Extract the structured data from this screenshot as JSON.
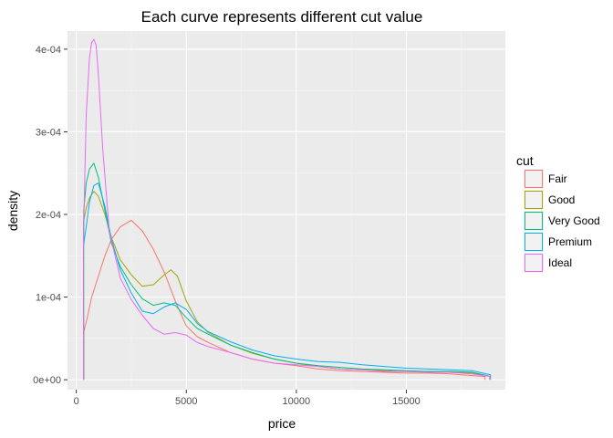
{
  "chart_data": {
    "type": "line",
    "title": "Each curve represents different cut value",
    "xlabel": "price",
    "ylabel": "density",
    "xlim": [
      -400,
      19500
    ],
    "ylim": [
      -1.2e-05,
      0.000422
    ],
    "x_ticks": [
      0,
      5000,
      10000,
      15000
    ],
    "x_tick_labels": [
      "0",
      "5000",
      "10000",
      "15000"
    ],
    "y_ticks": [
      0,
      0.0001,
      0.0002,
      0.0003,
      0.0004
    ],
    "y_tick_labels": [
      "0e+00",
      "1e-04",
      "2e-04",
      "3e-04",
      "4e-04"
    ],
    "grid": true,
    "legend": {
      "title": "cut",
      "position": "right"
    },
    "series": [
      {
        "name": "Fair",
        "color": "#F8766D",
        "x": [
          337,
          337,
          500,
          700,
          1000,
          1300,
          1600,
          2000,
          2500,
          3000,
          3500,
          4000,
          4500,
          5000,
          5500,
          6000,
          7000,
          8000,
          9000,
          10000,
          11000,
          12000,
          13000,
          14000,
          15000,
          16000,
          17000,
          18000,
          18574,
          18574
        ],
        "y": [
          0,
          5.8e-05,
          7.5e-05,
          0.0001,
          0.000125,
          0.00015,
          0.00017,
          0.000185,
          0.000193,
          0.00018,
          0.000158,
          0.00013,
          9.5e-05,
          6.5e-05,
          5.2e-05,
          4.5e-05,
          3.3e-05,
          2.5e-05,
          2e-05,
          1.7e-05,
          1.3e-05,
          1.1e-05,
          1e-05,
          9e-06,
          8e-06,
          8e-06,
          7e-06,
          5e-06,
          4e-06,
          0
        ]
      },
      {
        "name": "Good",
        "color": "#A3A500",
        "x": [
          327,
          327,
          450,
          600,
          800,
          1000,
          1300,
          1600,
          2000,
          2500,
          3000,
          3500,
          4000,
          4300,
          4600,
          5000,
          5500,
          6000,
          7000,
          8000,
          9000,
          10000,
          11000,
          12000,
          13000,
          14000,
          15000,
          16000,
          17000,
          18000,
          18788,
          18788
        ],
        "y": [
          0,
          0.00019,
          0.000208,
          0.00022,
          0.000228,
          0.000222,
          0.0002,
          0.000172,
          0.000145,
          0.000127,
          0.000113,
          0.000115,
          0.000127,
          0.000133,
          0.000125,
          9.5e-05,
          7e-05,
          5.7e-05,
          4.2e-05,
          3.2e-05,
          2.5e-05,
          2e-05,
          1.6e-05,
          1.3e-05,
          1.2e-05,
          1.1e-05,
          1e-05,
          1e-05,
          9e-06,
          8e-06,
          4e-06,
          0
        ]
      },
      {
        "name": "Very Good",
        "color": "#00BF7D",
        "x": [
          336,
          336,
          450,
          600,
          800,
          1000,
          1300,
          1600,
          2000,
          2500,
          3000,
          3500,
          4000,
          4500,
          5000,
          5500,
          6000,
          7000,
          8000,
          9000,
          10000,
          11000,
          12000,
          13000,
          14000,
          15000,
          16000,
          17000,
          18000,
          18818,
          18818
        ],
        "y": [
          0,
          0.000205,
          0.000238,
          0.000255,
          0.000262,
          0.000245,
          0.000205,
          0.000165,
          0.000137,
          0.000115,
          9.8e-05,
          9e-05,
          9.3e-05,
          9e-05,
          7.5e-05,
          6.2e-05,
          5.5e-05,
          4.2e-05,
          3.3e-05,
          2.5e-05,
          2e-05,
          1.7e-05,
          1.5e-05,
          1.3e-05,
          1.2e-05,
          1.1e-05,
          1e-05,
          1e-05,
          9e-06,
          4e-06,
          0
        ]
      },
      {
        "name": "Premium",
        "color": "#00B0F6",
        "x": [
          326,
          326,
          450,
          600,
          800,
          1000,
          1300,
          1600,
          2000,
          2500,
          3000,
          3500,
          4000,
          4500,
          5000,
          5500,
          6000,
          7000,
          8000,
          9000,
          10000,
          11000,
          12000,
          13000,
          14000,
          15000,
          16000,
          17000,
          18000,
          18823,
          18823
        ],
        "y": [
          0,
          0.000162,
          0.000185,
          0.000215,
          0.000235,
          0.000238,
          0.00021,
          0.00017,
          0.000133,
          0.000105,
          8.3e-05,
          8e-05,
          8.8e-05,
          9.3e-05,
          8.5e-05,
          6.8e-05,
          5.8e-05,
          4.6e-05,
          3.6e-05,
          2.9e-05,
          2.5e-05,
          2.2e-05,
          2.1e-05,
          1.8e-05,
          1.6e-05,
          1.4e-05,
          1.3e-05,
          1.2e-05,
          1.1e-05,
          6e-06,
          0
        ]
      },
      {
        "name": "Ideal",
        "color": "#E76BF3",
        "x": [
          326,
          326,
          450,
          600,
          700,
          800,
          900,
          1000,
          1200,
          1500,
          2000,
          2500,
          3000,
          3500,
          4000,
          4500,
          5000,
          5500,
          6000,
          7000,
          8000,
          9000,
          10000,
          11000,
          12000,
          13000,
          14000,
          15000,
          16000,
          17000,
          18000,
          18806,
          18806
        ],
        "y": [
          0,
          0.000175,
          0.00032,
          0.00039,
          0.000408,
          0.000412,
          0.000405,
          0.00037,
          0.00028,
          0.00018,
          0.000123,
          9.7e-05,
          7.8e-05,
          6.2e-05,
          5.5e-05,
          5.7e-05,
          5.4e-05,
          4.5e-05,
          4e-05,
          3.3e-05,
          2.5e-05,
          2e-05,
          1.8e-05,
          1.6e-05,
          1.3e-05,
          1.2e-05,
          1e-05,
          1e-05,
          9e-06,
          9e-06,
          7e-06,
          4e-06,
          0
        ]
      }
    ]
  }
}
